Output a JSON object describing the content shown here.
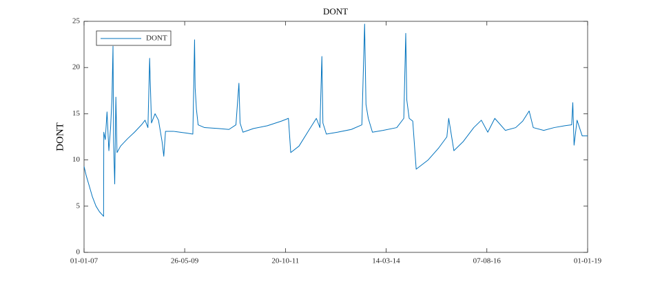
{
  "chart_data": {
    "type": "line",
    "title": "DONT",
    "ylabel": "DONT",
    "x": [
      "2007-01-01",
      "2007-01-20",
      "2007-02-15",
      "2007-03-15",
      "2007-04-15",
      "2007-05-15",
      "2007-06-20",
      "2007-06-22",
      "2007-07-05",
      "2007-07-20",
      "2007-08-05",
      "2007-08-20",
      "2007-09-01",
      "2007-09-10",
      "2007-09-15",
      "2007-09-25",
      "2007-10-05",
      "2007-10-15",
      "2007-11-15",
      "2008-01-15",
      "2008-03-15",
      "2008-05-15",
      "2008-06-15",
      "2008-07-10",
      "2008-07-25",
      "2008-07-30",
      "2008-08-10",
      "2008-09-10",
      "2008-10-10",
      "2008-11-10",
      "2008-11-25",
      "2008-12-10",
      "2009-02-15",
      "2009-04-15",
      "2009-06-15",
      "2009-08-05",
      "2009-08-20",
      "2009-08-25",
      "2009-09-05",
      "2009-09-20",
      "2009-11-15",
      "2010-03-15",
      "2010-06-15",
      "2010-08-15",
      "2010-09-10",
      "2010-09-20",
      "2010-10-15",
      "2011-01-15",
      "2011-05-15",
      "2011-09-15",
      "2011-11-15",
      "2011-12-05",
      "2012-02-15",
      "2012-05-15",
      "2012-07-15",
      "2012-08-15",
      "2012-09-01",
      "2012-09-10",
      "2012-10-10",
      "2013-01-15",
      "2013-05-15",
      "2013-08-15",
      "2013-09-08",
      "2013-09-20",
      "2013-10-10",
      "2013-11-15",
      "2014-02-15",
      "2014-06-15",
      "2014-08-15",
      "2014-09-01",
      "2014-09-10",
      "2014-10-01",
      "2014-11-01",
      "2014-12-01",
      "2015-03-15",
      "2015-06-15",
      "2015-08-25",
      "2015-09-10",
      "2015-10-25",
      "2016-01-15",
      "2016-04-15",
      "2016-06-20",
      "2016-08-15",
      "2016-10-15",
      "2017-01-15",
      "2017-04-15",
      "2017-06-15",
      "2017-08-10",
      "2017-09-15",
      "2017-12-15",
      "2018-03-15",
      "2018-06-15",
      "2018-08-15",
      "2018-08-25",
      "2018-09-05",
      "2018-10-01",
      "2018-11-15",
      "2019-01-01"
    ],
    "series": [
      {
        "name": "DONT",
        "color": "#0072bd",
        "values": [
          9.3,
          8.3,
          7.2,
          6.0,
          5.0,
          4.4,
          3.9,
          13.0,
          12.2,
          15.2,
          11.0,
          13.5,
          16.7,
          22.3,
          12.0,
          7.4,
          16.8,
          10.8,
          11.5,
          12.3,
          13.0,
          13.8,
          14.3,
          13.5,
          21.0,
          18.6,
          14.0,
          15.0,
          14.3,
          12.0,
          10.4,
          13.1,
          13.1,
          13.0,
          12.9,
          12.8,
          23.0,
          17.8,
          15.5,
          13.8,
          13.5,
          13.4,
          13.3,
          13.8,
          18.3,
          14.0,
          13.0,
          13.4,
          13.7,
          14.2,
          14.5,
          10.8,
          11.5,
          13.3,
          14.5,
          13.5,
          21.2,
          14.0,
          12.8,
          13.0,
          13.3,
          13.8,
          24.7,
          16.0,
          14.5,
          13.0,
          13.2,
          13.5,
          14.5,
          23.7,
          16.5,
          14.5,
          14.2,
          9.0,
          10.0,
          11.3,
          12.5,
          14.5,
          11.0,
          12.0,
          13.5,
          14.3,
          13.0,
          14.5,
          13.2,
          13.5,
          14.2,
          15.3,
          13.5,
          13.2,
          13.5,
          13.7,
          13.8,
          16.2,
          11.6,
          14.3,
          12.6,
          12.6
        ]
      }
    ],
    "xlim": [
      "2007-01-01",
      "2019-01-01"
    ],
    "xticks": [
      {
        "value": "2007-01-01",
        "label": "01-01-07"
      },
      {
        "value": "2009-05-26",
        "label": "26-05-09"
      },
      {
        "value": "2011-10-20",
        "label": "20-10-11"
      },
      {
        "value": "2014-03-14",
        "label": "14-03-14"
      },
      {
        "value": "2016-08-07",
        "label": "07-08-16"
      },
      {
        "value": "2019-01-01",
        "label": "01-01-19"
      }
    ],
    "ylim": [
      0,
      25
    ],
    "yticks": [
      0,
      5,
      10,
      15,
      20,
      25
    ],
    "legend": "upper left",
    "grid": false
  }
}
